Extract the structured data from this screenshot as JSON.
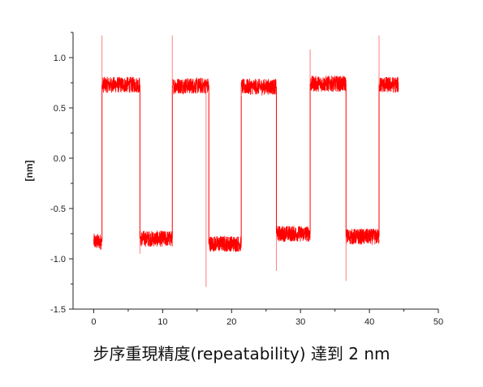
{
  "caption": "步序重現精度(repeatability) 達到 2 nm",
  "chart_data": {
    "type": "line",
    "ylabel": "[nm]",
    "xlabel": "",
    "title": "",
    "xlim": [
      -3,
      50
    ],
    "ylim": [
      -1.5,
      1.25
    ],
    "xticks": [
      0,
      10,
      20,
      30,
      40,
      50
    ],
    "yticks": [
      -1.5,
      -1.0,
      -0.5,
      0.0,
      0.5,
      1.0
    ],
    "ytick_labels": [
      "-1.5",
      "-1.0",
      "-0.5",
      "0.0",
      "0.5",
      "1.0"
    ],
    "grid": false,
    "series_color": "#ff0000",
    "noise_amplitude": 0.08,
    "segments": [
      {
        "x_start": 0.0,
        "x_end": 1.2,
        "y": -0.83
      },
      {
        "x_start": 1.2,
        "x_end": 6.7,
        "y": 0.73
      },
      {
        "x_start": 6.7,
        "x_end": 11.4,
        "y": -0.8
      },
      {
        "x_start": 11.4,
        "x_end": 16.7,
        "y": 0.72
      },
      {
        "x_start": 16.7,
        "x_end": 21.4,
        "y": -0.85
      },
      {
        "x_start": 21.4,
        "x_end": 26.5,
        "y": 0.71
      },
      {
        "x_start": 26.5,
        "x_end": 31.4,
        "y": -0.75
      },
      {
        "x_start": 31.4,
        "x_end": 36.6,
        "y": 0.74
      },
      {
        "x_start": 36.6,
        "x_end": 41.4,
        "y": -0.78
      },
      {
        "x_start": 41.4,
        "x_end": 44.2,
        "y": 0.73
      }
    ],
    "spikes": [
      {
        "x": 1.2,
        "y": 1.22
      },
      {
        "x": 6.7,
        "y": -0.95
      },
      {
        "x": 11.4,
        "y": 1.22
      },
      {
        "x": 16.3,
        "y": -1.28
      },
      {
        "x": 21.4,
        "y": 0.62
      },
      {
        "x": 26.5,
        "y": -1.12
      },
      {
        "x": 31.4,
        "y": 1.08
      },
      {
        "x": 36.6,
        "y": -1.22
      },
      {
        "x": 41.4,
        "y": 1.22
      }
    ]
  }
}
